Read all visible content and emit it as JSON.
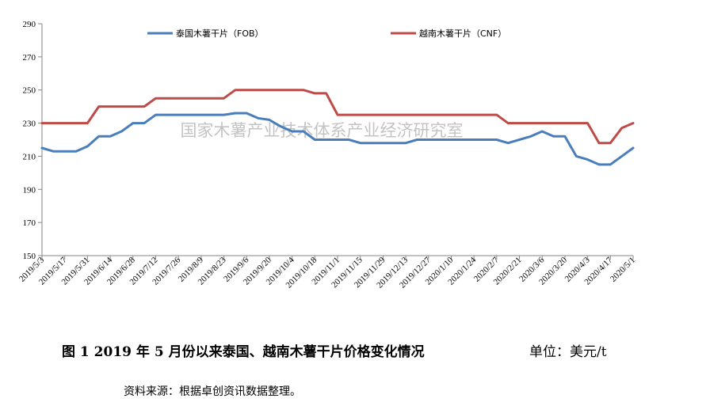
{
  "chart_data": {
    "type": "line",
    "ylim": [
      150,
      290
    ],
    "yticks": [
      150,
      170,
      190,
      210,
      230,
      250,
      270,
      290
    ],
    "categories": [
      "2019/5/3",
      "2019/5/10",
      "2019/5/17",
      "2019/5/24",
      "2019/5/31",
      "2019/6/7",
      "2019/6/14",
      "2019/6/21",
      "2019/6/28",
      "2019/7/5",
      "2019/7/12",
      "2019/7/19",
      "2019/7/26",
      "2019/8/2",
      "2019/8/9",
      "2019/8/16",
      "2019/8/23",
      "2019/8/30",
      "2019/9/6",
      "2019/9/13",
      "2019/9/20",
      "2019/9/27",
      "2019/10/4",
      "2019/10/11",
      "2019/10/18",
      "2019/10/25",
      "2019/11/1",
      "2019/11/8",
      "2019/11/15",
      "2019/11/22",
      "2019/11/29",
      "2019/12/6",
      "2019/12/13",
      "2019/12/20",
      "2019/12/27",
      "2020/1/3",
      "2020/1/10",
      "2020/1/17",
      "2020/1/24",
      "2020/1/31",
      "2020/2/7",
      "2020/2/14",
      "2020/2/21",
      "2020/2/28",
      "2020/3/6",
      "2020/3/13",
      "2020/3/20",
      "2020/3/27",
      "2020/4/3",
      "2020/4/10",
      "2020/4/17",
      "2020/4/24",
      "2020/5/1"
    ],
    "tick_labels": [
      "2019/5/3",
      "2019/5/17",
      "2019/5/31",
      "2019/6/14",
      "2019/6/28",
      "2019/7/12",
      "2019/7/26",
      "2019/8/9",
      "2019/8/23",
      "2019/9/6",
      "2019/9/20",
      "2019/10/4",
      "2019/10/18",
      "2019/11/1",
      "2019/11/15",
      "2019/11/29",
      "2019/12/13",
      "2019/12/27",
      "2020/1/10",
      "2020/1/24",
      "2020/2/7",
      "2020/2/21",
      "2020/3/6",
      "2020/3/20",
      "2020/4/3",
      "2020/4/17",
      "2020/5/1"
    ],
    "series": [
      {
        "name": "泰国木薯干片（FOB）",
        "color": "#4a7ebb",
        "values": [
          215,
          213,
          213,
          213,
          216,
          222,
          222,
          225,
          230,
          230,
          235,
          235,
          235,
          235,
          235,
          235,
          235,
          236,
          236,
          233,
          232,
          228,
          225,
          225,
          220,
          220,
          220,
          220,
          218,
          218,
          218,
          218,
          218,
          220,
          220,
          220,
          220,
          220,
          220,
          220,
          220,
          218,
          220,
          222,
          225,
          222,
          222,
          210,
          208,
          205,
          205,
          210,
          215
        ]
      },
      {
        "name": "越南木薯干片（CNF）",
        "color": "#be4b48",
        "values": [
          230,
          230,
          230,
          230,
          230,
          240,
          240,
          240,
          240,
          240,
          245,
          245,
          245,
          245,
          245,
          245,
          245,
          250,
          250,
          250,
          250,
          250,
          250,
          250,
          248,
          248,
          235,
          235,
          235,
          235,
          235,
          235,
          235,
          235,
          235,
          235,
          235,
          235,
          235,
          235,
          235,
          230,
          230,
          230,
          230,
          230,
          230,
          230,
          230,
          218,
          218,
          227,
          230
        ]
      }
    ],
    "legend_position": "top",
    "grid": false
  },
  "watermark": "国家木薯产业技术体系产业经济研究室",
  "caption": "图 1   2019 年 5 月份以来泰国、越南木薯干片价格变化情况",
  "unit": "单位：美元/t",
  "source": "资料来源：根据卓创资讯数据整理。"
}
